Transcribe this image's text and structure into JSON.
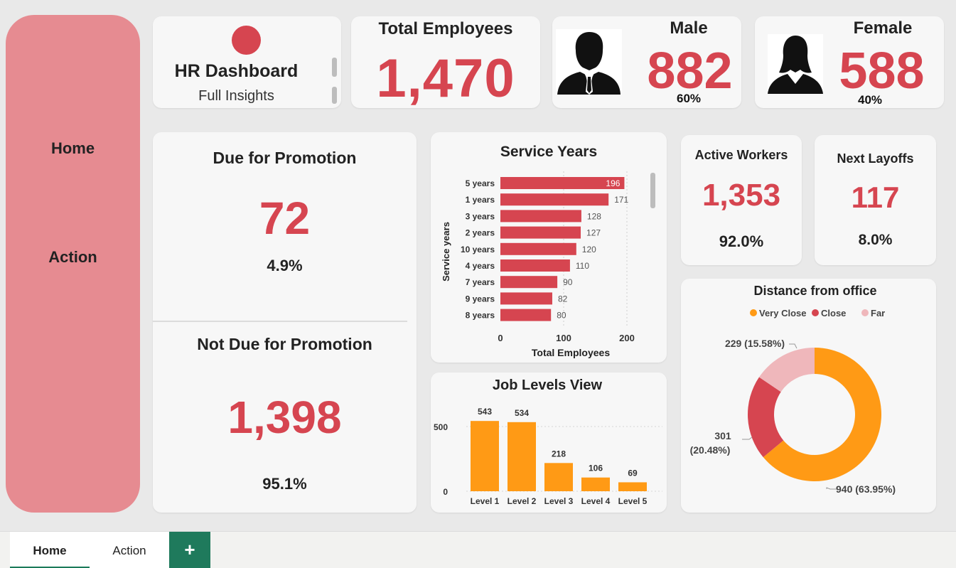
{
  "sidebar": {
    "items": [
      {
        "label": "Home"
      },
      {
        "label": "Action"
      }
    ]
  },
  "title_card": {
    "title": "HR Dashboard",
    "subtitle": "Full Insights"
  },
  "total_employees": {
    "label": "Total Employees",
    "value": "1,470"
  },
  "male": {
    "label": "Male",
    "value": "882",
    "pct": "60%"
  },
  "female": {
    "label": "Female",
    "value": "588",
    "pct": "40%"
  },
  "promotion": {
    "due_label": "Due for Promotion",
    "due_value": "72",
    "due_pct": "4.9%",
    "not_due_label": "Not Due for Promotion",
    "not_due_value": "1,398",
    "not_due_pct": "95.1%"
  },
  "active_workers": {
    "label": "Active Workers",
    "value": "1,353",
    "pct": "92.0%"
  },
  "next_layoffs": {
    "label": "Next Layoffs",
    "value": "117",
    "pct": "8.0%"
  },
  "colors": {
    "accent": "#d64550",
    "orange": "#ff9a15",
    "pink": "#efb7bb",
    "sidebar": "#e68b91",
    "tab_green": "#1f7a5c"
  },
  "tabs": [
    {
      "label": "Home"
    },
    {
      "label": "Action"
    },
    {
      "label": "+"
    }
  ],
  "chart_data": [
    {
      "type": "bar",
      "orientation": "horizontal",
      "title": "Service Years",
      "xlabel": "Total Employees",
      "ylabel": "Service years",
      "categories": [
        "5 years",
        "1 years",
        "3 years",
        "2 years",
        "10 years",
        "4 years",
        "7 years",
        "9 years",
        "8 years"
      ],
      "values": [
        196,
        171,
        128,
        127,
        120,
        110,
        90,
        82,
        80
      ],
      "xlim": [
        0,
        200
      ],
      "xticks": [
        "0",
        "100",
        "200"
      ]
    },
    {
      "type": "bar",
      "title": "Job Levels View",
      "categories": [
        "Level 1",
        "Level 2",
        "Level 3",
        "Level 4",
        "Level 5"
      ],
      "values": [
        543,
        534,
        218,
        106,
        69
      ],
      "ylim": [
        0,
        600
      ],
      "yticks": [
        "0",
        "500"
      ]
    },
    {
      "type": "pie",
      "subtype": "donut",
      "title": "Distance from office",
      "legend_position": "top",
      "slices": [
        {
          "name": "Very Close",
          "value": 940,
          "label": "940 (63.95%)",
          "color": "#ff9a15"
        },
        {
          "name": "Close",
          "value": 301,
          "label_line1": "301",
          "label_line2": "(20.48%)",
          "color": "#d64550"
        },
        {
          "name": "Far",
          "value": 229,
          "label": "229 (15.58%)",
          "color": "#efb7bb"
        }
      ]
    }
  ]
}
